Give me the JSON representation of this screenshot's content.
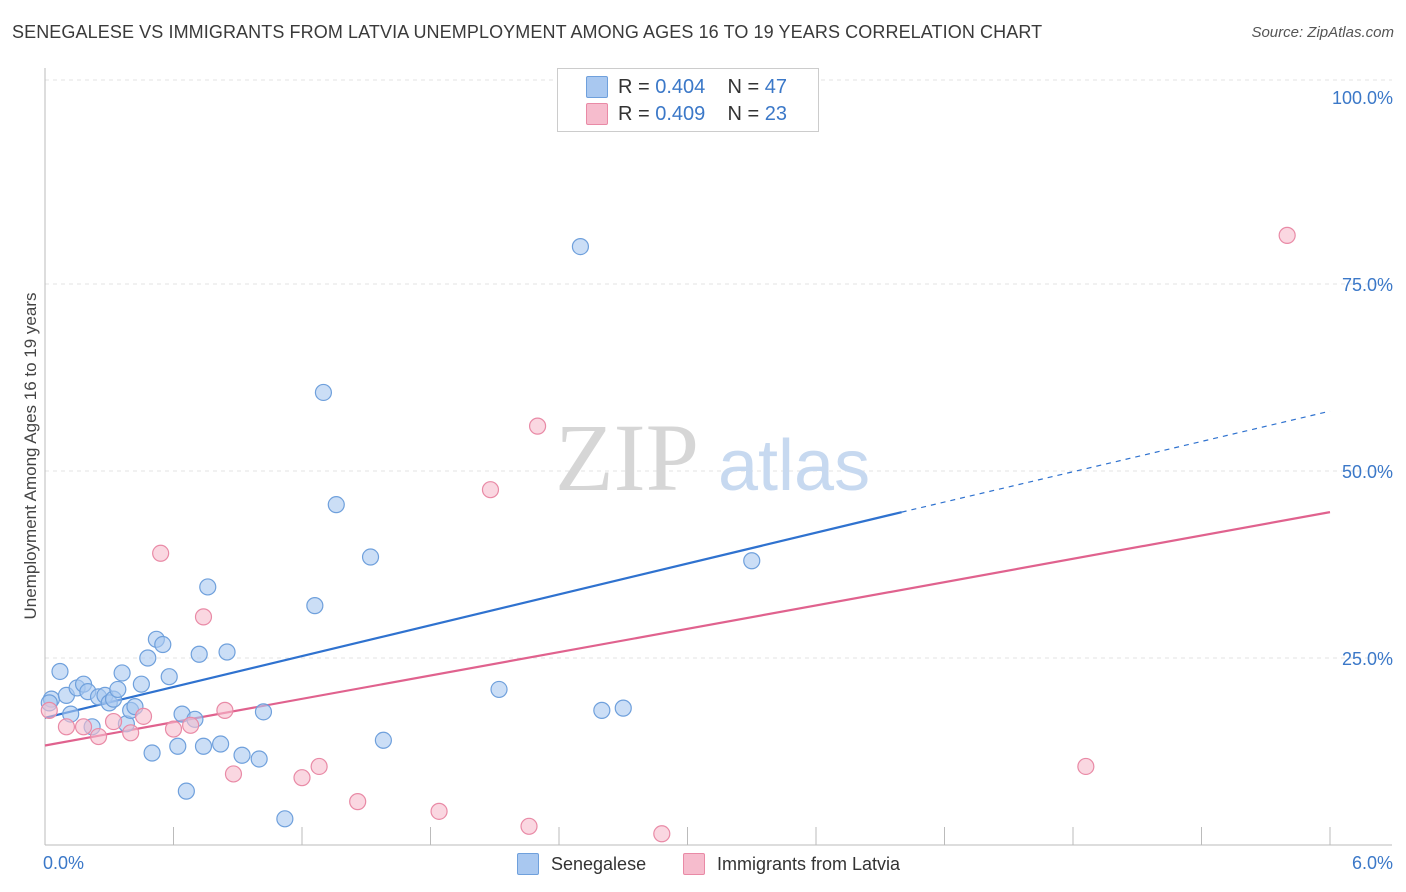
{
  "title": "SENEGALESE VS IMMIGRANTS FROM LATVIA UNEMPLOYMENT AMONG AGES 16 TO 19 YEARS CORRELATION CHART",
  "source": "Source: ZipAtlas.com",
  "watermark": {
    "part1": "ZIP",
    "part2": "atlas"
  },
  "legend": {
    "r_label": "R =",
    "n_label": "N =",
    "rows": [
      {
        "r": "0.404",
        "n": "47"
      },
      {
        "r": "0.409",
        "n": "23"
      }
    ]
  },
  "colors": {
    "blue_fill": "#a9c8f0",
    "blue_stroke": "#6fa0dc",
    "blue_line": "#2f72cf",
    "pink_fill": "#f6bccd",
    "pink_stroke": "#e98aa6",
    "pink_line": "#e0628e",
    "tick_text": "#3b78c8"
  },
  "chart_data": {
    "type": "scatter",
    "title": "SENEGALESE VS IMMIGRANTS FROM LATVIA UNEMPLOYMENT AMONG AGES 16 TO 19 YEARS CORRELATION CHART",
    "xlabel": "",
    "ylabel": "Unemployment Among Ages 16 to 19 years",
    "xlim": [
      0,
      6
    ],
    "ylim": [
      0,
      100
    ],
    "x_tick_labels": [
      "0.0%",
      "6.0%"
    ],
    "y_ticks": [
      25,
      50,
      75,
      100
    ],
    "y_tick_labels": [
      "25.0%",
      "50.0%",
      "75.0%",
      "100.0%"
    ],
    "grid": true,
    "legend_position": "bottom-center",
    "series": [
      {
        "name": "Senegalese",
        "r": 0.404,
        "n": 47,
        "trend": {
          "x0": 0.0,
          "y0": 17.0,
          "x1": 4.0,
          "y1": 44.5,
          "dash_to_x": 6.0,
          "dash_to_y": 58.0
        },
        "points": [
          [
            0.03,
            19.5
          ],
          [
            0.07,
            23.2
          ],
          [
            0.1,
            20.0
          ],
          [
            0.12,
            17.5
          ],
          [
            0.15,
            21.0
          ],
          [
            0.18,
            21.5
          ],
          [
            0.2,
            20.5
          ],
          [
            0.22,
            15.8
          ],
          [
            0.25,
            19.8
          ],
          [
            0.28,
            20.0
          ],
          [
            0.3,
            19.0
          ],
          [
            0.32,
            19.5
          ],
          [
            0.34,
            20.8
          ],
          [
            0.36,
            23.0
          ],
          [
            0.38,
            16.2
          ],
          [
            0.4,
            18.0
          ],
          [
            0.42,
            18.5
          ],
          [
            0.45,
            21.5
          ],
          [
            0.48,
            25.0
          ],
          [
            0.5,
            12.3
          ],
          [
            0.52,
            27.5
          ],
          [
            0.55,
            26.8
          ],
          [
            0.58,
            22.5
          ],
          [
            0.62,
            13.2
          ],
          [
            0.64,
            17.5
          ],
          [
            0.66,
            7.2
          ],
          [
            0.7,
            16.8
          ],
          [
            0.72,
            25.5
          ],
          [
            0.74,
            13.2
          ],
          [
            0.76,
            34.5
          ],
          [
            0.82,
            13.5
          ],
          [
            0.85,
            25.8
          ],
          [
            0.92,
            12.0
          ],
          [
            1.0,
            11.5
          ],
          [
            1.02,
            17.8
          ],
          [
            1.12,
            3.5
          ],
          [
            1.26,
            32.0
          ],
          [
            1.3,
            60.5
          ],
          [
            1.36,
            45.5
          ],
          [
            1.52,
            38.5
          ],
          [
            1.58,
            14.0
          ],
          [
            2.12,
            20.8
          ],
          [
            2.5,
            80.0
          ],
          [
            2.6,
            18.0
          ],
          [
            2.7,
            18.3
          ],
          [
            3.3,
            38.0
          ],
          [
            0.02,
            19.0
          ]
        ]
      },
      {
        "name": "Immigrants from Latvia",
        "r": 0.409,
        "n": 23,
        "trend": {
          "x0": 0.0,
          "y0": 13.3,
          "x1": 6.0,
          "y1": 44.5
        },
        "points": [
          [
            0.02,
            18.0
          ],
          [
            0.1,
            15.8
          ],
          [
            0.18,
            15.8
          ],
          [
            0.25,
            14.5
          ],
          [
            0.32,
            16.5
          ],
          [
            0.4,
            15.0
          ],
          [
            0.46,
            17.2
          ],
          [
            0.54,
            39.0
          ],
          [
            0.6,
            15.5
          ],
          [
            0.68,
            16.0
          ],
          [
            0.74,
            30.5
          ],
          [
            0.84,
            18.0
          ],
          [
            0.88,
            9.5
          ],
          [
            1.2,
            9.0
          ],
          [
            1.28,
            10.5
          ],
          [
            1.46,
            5.8
          ],
          [
            1.84,
            4.5
          ],
          [
            2.08,
            47.5
          ],
          [
            2.26,
            2.5
          ],
          [
            2.3,
            56.0
          ],
          [
            2.88,
            1.5
          ],
          [
            4.86,
            10.5
          ],
          [
            5.8,
            81.5
          ]
        ]
      }
    ]
  }
}
